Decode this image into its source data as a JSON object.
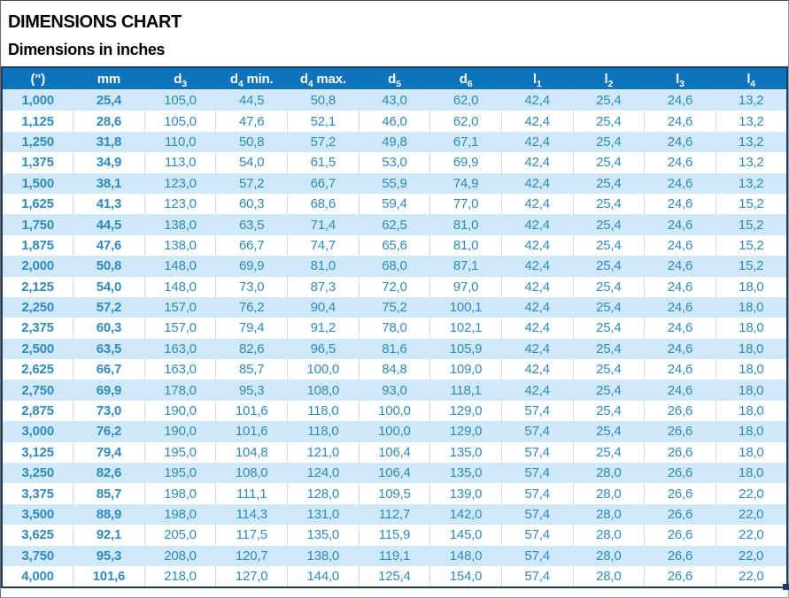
{
  "page": {
    "title": "DIMENSIONS CHART",
    "subtitle": "Dimensions in inches"
  },
  "colors": {
    "header_bg": "#0d73ba",
    "row_alt_bg": "#cfe9f8",
    "row_plain_bg": "#ffffff",
    "text_regular": "#2e8bc1",
    "text_bold": "#17689c",
    "selection_border": "#1f3864"
  },
  "table": {
    "columns": [
      {
        "name": "inches",
        "base": "(\")",
        "sub": "",
        "suffix": ""
      },
      {
        "name": "mm",
        "base": "mm",
        "sub": "",
        "suffix": ""
      },
      {
        "name": "d3",
        "base": "d",
        "sub": "3",
        "suffix": ""
      },
      {
        "name": "d4-min",
        "base": "d",
        "sub": "4",
        "suffix": " min."
      },
      {
        "name": "d4-max",
        "base": "d",
        "sub": "4",
        "suffix": " max."
      },
      {
        "name": "d5",
        "base": "d",
        "sub": "5",
        "suffix": ""
      },
      {
        "name": "d6",
        "base": "d",
        "sub": "6",
        "suffix": ""
      },
      {
        "name": "l1",
        "base": "l",
        "sub": "1",
        "suffix": ""
      },
      {
        "name": "l2",
        "base": "l",
        "sub": "2",
        "suffix": ""
      },
      {
        "name": "l3",
        "base": "l",
        "sub": "3",
        "suffix": ""
      },
      {
        "name": "l4",
        "base": "l",
        "sub": "4",
        "suffix": ""
      }
    ],
    "rows": [
      [
        "1,000",
        "25,4",
        "105,0",
        "44,5",
        "50,8",
        "43,0",
        "62,0",
        "42,4",
        "25,4",
        "24,6",
        "13,2"
      ],
      [
        "1,125",
        "28,6",
        "105,0",
        "47,6",
        "52,1",
        "46,0",
        "62,0",
        "42,4",
        "25,4",
        "24,6",
        "13,2"
      ],
      [
        "1,250",
        "31,8",
        "110,0",
        "50,8",
        "57,2",
        "49,8",
        "67,1",
        "42,4",
        "25,4",
        "24,6",
        "13,2"
      ],
      [
        "1,375",
        "34,9",
        "113,0",
        "54,0",
        "61,5",
        "53,0",
        "69,9",
        "42,4",
        "25,4",
        "24,6",
        "13,2"
      ],
      [
        "1,500",
        "38,1",
        "123,0",
        "57,2",
        "66,7",
        "55,9",
        "74,9",
        "42,4",
        "25,4",
        "24,6",
        "13,2"
      ],
      [
        "1,625",
        "41,3",
        "123,0",
        "60,3",
        "68,6",
        "59,4",
        "77,0",
        "42,4",
        "25,4",
        "24,6",
        "15,2"
      ],
      [
        "1,750",
        "44,5",
        "138,0",
        "63,5",
        "71,4",
        "62,5",
        "81,0",
        "42,4",
        "25,4",
        "24,6",
        "15,2"
      ],
      [
        "1,875",
        "47,6",
        "138,0",
        "66,7",
        "74,7",
        "65,6",
        "81,0",
        "42,4",
        "25,4",
        "24,6",
        "15,2"
      ],
      [
        "2,000",
        "50,8",
        "148,0",
        "69,9",
        "81,0",
        "68,0",
        "87,1",
        "42,4",
        "25,4",
        "24,6",
        "15,2"
      ],
      [
        "2,125",
        "54,0",
        "148,0",
        "73,0",
        "87,3",
        "72,0",
        "97,0",
        "42,4",
        "25,4",
        "24,6",
        "18,0"
      ],
      [
        "2,250",
        "57,2",
        "157,0",
        "76,2",
        "90,4",
        "75,2",
        "100,1",
        "42,4",
        "25,4",
        "24,6",
        "18,0"
      ],
      [
        "2,375",
        "60,3",
        "157,0",
        "79,4",
        "91,2",
        "78,0",
        "102,1",
        "42,4",
        "25,4",
        "24,6",
        "18,0"
      ],
      [
        "2,500",
        "63,5",
        "163,0",
        "82,6",
        "96,5",
        "81,6",
        "105,9",
        "42,4",
        "25,4",
        "24,6",
        "18,0"
      ],
      [
        "2,625",
        "66,7",
        "163,0",
        "85,7",
        "100,0",
        "84,8",
        "109,0",
        "42,4",
        "25,4",
        "24,6",
        "18,0"
      ],
      [
        "2,750",
        "69,9",
        "178,0",
        "95,3",
        "108,0",
        "93,0",
        "118,1",
        "42,4",
        "25,4",
        "24,6",
        "18,0"
      ],
      [
        "2,875",
        "73,0",
        "190,0",
        "101,6",
        "118,0",
        "100,0",
        "129,0",
        "57,4",
        "25,4",
        "26,6",
        "18,0"
      ],
      [
        "3,000",
        "76,2",
        "190,0",
        "101,6",
        "118,0",
        "100,0",
        "129,0",
        "57,4",
        "25,4",
        "26,6",
        "18,0"
      ],
      [
        "3,125",
        "79,4",
        "195,0",
        "104,8",
        "121,0",
        "106,4",
        "135,0",
        "57,4",
        "25,4",
        "26,6",
        "18,0"
      ],
      [
        "3,250",
        "82,6",
        "195,0",
        "108,0",
        "124,0",
        "106,4",
        "135,0",
        "57,4",
        "28,0",
        "26,6",
        "18,0"
      ],
      [
        "3,375",
        "85,7",
        "198,0",
        "111,1",
        "128,0",
        "109,5",
        "139,0",
        "57,4",
        "28,0",
        "26,6",
        "22,0"
      ],
      [
        "3,500",
        "88,9",
        "198,0",
        "114,3",
        "131,0",
        "112,7",
        "142,0",
        "57,4",
        "28,0",
        "26,6",
        "22,0"
      ],
      [
        "3,625",
        "92,1",
        "205,0",
        "117,5",
        "135,0",
        "115,9",
        "145,0",
        "57,4",
        "28,0",
        "26,6",
        "22,0"
      ],
      [
        "3,750",
        "95,3",
        "208,0",
        "120,7",
        "138,0",
        "119,1",
        "148,0",
        "57,4",
        "28,0",
        "26,6",
        "22,0"
      ],
      [
        "4,000",
        "101,6",
        "218,0",
        "127,0",
        "144,0",
        "125,4",
        "154,0",
        "57,4",
        "28,0",
        "26,6",
        "22,0"
      ]
    ]
  }
}
